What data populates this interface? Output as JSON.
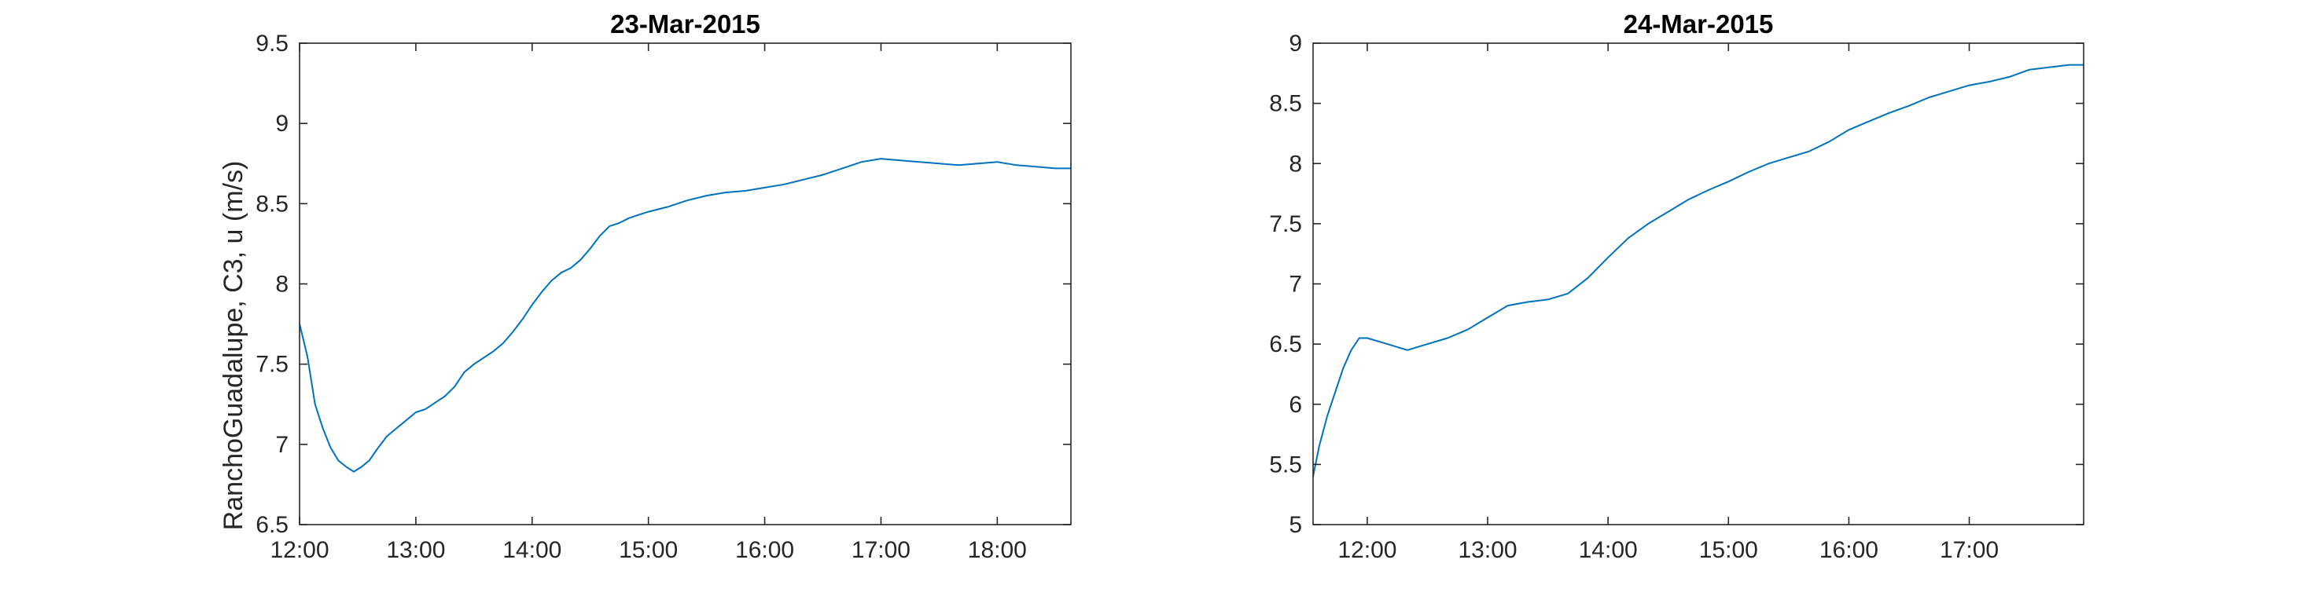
{
  "figure": {
    "ylabel": "RanchoGuadalupe, C3, u (m/s)"
  },
  "chart_data": [
    {
      "type": "line",
      "title": "23-Mar-2015",
      "xlabel": "",
      "ylabel": "RanchoGuadalupe, C3, u (m/s)",
      "xlim": [
        "12:00",
        "18:38"
      ],
      "ylim": [
        6.5,
        9.5
      ],
      "grid": false,
      "x_ticks": [
        "12:00",
        "13:00",
        "14:00",
        "15:00",
        "16:00",
        "17:00",
        "18:00"
      ],
      "y_ticks": [
        "6.5",
        "7",
        "7.5",
        "8",
        "8.5",
        "9",
        "9.5"
      ],
      "color": "#0072bd",
      "series": [
        {
          "x": [
            "12:00",
            "12:04",
            "12:08",
            "12:12",
            "12:16",
            "12:20",
            "12:24",
            "12:28",
            "12:32",
            "12:36",
            "12:40",
            "12:45",
            "12:50",
            "12:55",
            "13:00",
            "13:05",
            "13:10",
            "13:15",
            "13:20",
            "13:25",
            "13:30",
            "13:35",
            "13:40",
            "13:45",
            "13:50",
            "13:55",
            "14:00",
            "14:05",
            "14:10",
            "14:15",
            "14:20",
            "14:25",
            "14:30",
            "14:35",
            "14:40",
            "14:45",
            "14:50",
            "14:55",
            "15:00",
            "15:10",
            "15:20",
            "15:30",
            "15:40",
            "15:50",
            "16:00",
            "16:10",
            "16:20",
            "16:30",
            "16:40",
            "16:50",
            "17:00",
            "17:10",
            "17:20",
            "17:30",
            "17:40",
            "17:50",
            "18:00",
            "18:10",
            "18:20",
            "18:30",
            "18:38"
          ],
          "values": [
            7.75,
            7.55,
            7.25,
            7.1,
            6.98,
            6.9,
            6.86,
            6.83,
            6.86,
            6.9,
            6.97,
            7.05,
            7.1,
            7.15,
            7.2,
            7.22,
            7.26,
            7.3,
            7.36,
            7.45,
            7.5,
            7.54,
            7.58,
            7.63,
            7.7,
            7.78,
            7.87,
            7.95,
            8.02,
            8.07,
            8.1,
            8.15,
            8.22,
            8.3,
            8.36,
            8.38,
            8.41,
            8.43,
            8.45,
            8.48,
            8.52,
            8.55,
            8.57,
            8.58,
            8.6,
            8.62,
            8.65,
            8.68,
            8.72,
            8.76,
            8.78,
            8.77,
            8.76,
            8.75,
            8.74,
            8.75,
            8.76,
            8.74,
            8.73,
            8.72,
            8.72
          ]
        }
      ]
    },
    {
      "type": "line",
      "title": "24-Mar-2015",
      "xlabel": "",
      "ylabel": "",
      "xlim": [
        "11:33",
        "17:57"
      ],
      "ylim": [
        5,
        9
      ],
      "grid": false,
      "x_ticks": [
        "12:00",
        "13:00",
        "14:00",
        "15:00",
        "16:00",
        "17:00"
      ],
      "y_ticks": [
        "5",
        "5.5",
        "6",
        "6.5",
        "7",
        "7.5",
        "8",
        "8.5",
        "9"
      ],
      "color": "#0072bd",
      "series": [
        {
          "x": [
            "11:33",
            "11:36",
            "11:40",
            "11:44",
            "11:48",
            "11:52",
            "11:56",
            "12:00",
            "12:10",
            "12:20",
            "12:30",
            "12:40",
            "12:50",
            "13:00",
            "13:10",
            "13:20",
            "13:30",
            "13:40",
            "13:50",
            "14:00",
            "14:10",
            "14:20",
            "14:30",
            "14:40",
            "14:50",
            "15:00",
            "15:10",
            "15:20",
            "15:30",
            "15:40",
            "15:50",
            "16:00",
            "16:10",
            "16:20",
            "16:30",
            "16:40",
            "16:50",
            "17:00",
            "17:10",
            "17:20",
            "17:30",
            "17:40",
            "17:50",
            "17:57"
          ],
          "values": [
            5.4,
            5.65,
            5.9,
            6.1,
            6.3,
            6.45,
            6.55,
            6.55,
            6.5,
            6.45,
            6.5,
            6.55,
            6.62,
            6.72,
            6.82,
            6.85,
            6.87,
            6.92,
            7.05,
            7.22,
            7.38,
            7.5,
            7.6,
            7.7,
            7.78,
            7.85,
            7.93,
            8.0,
            8.05,
            8.1,
            8.18,
            8.28,
            8.35,
            8.42,
            8.48,
            8.55,
            8.6,
            8.65,
            8.68,
            8.72,
            8.78,
            8.8,
            8.82,
            8.82
          ]
        }
      ]
    }
  ]
}
